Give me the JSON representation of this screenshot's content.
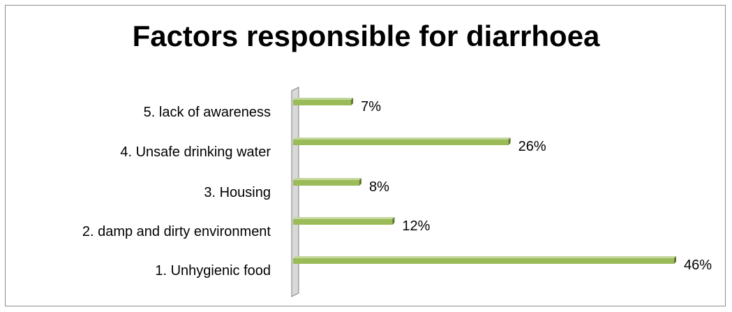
{
  "chart_data": {
    "type": "bar",
    "orientation": "horizontal",
    "style": "3d",
    "title": "Factors responsible for diarrhoea",
    "categories": [
      "1. Unhygienic food",
      "2. damp and dirty environment",
      "3. Housing",
      "4. Unsafe drinking water",
      "5. lack of awareness"
    ],
    "values": [
      46,
      12,
      8,
      26,
      7
    ],
    "value_labels": [
      "46%",
      "12%",
      "8%",
      "26%",
      "7%"
    ],
    "unit": "%",
    "xlim": [
      0,
      46
    ],
    "grid": false,
    "legend": "none",
    "colors": {
      "bar_front": "#9bbb59",
      "bar_top": "#c3d69b",
      "bar_end": "#5f7530",
      "wall": "#d9d9d9"
    }
  }
}
